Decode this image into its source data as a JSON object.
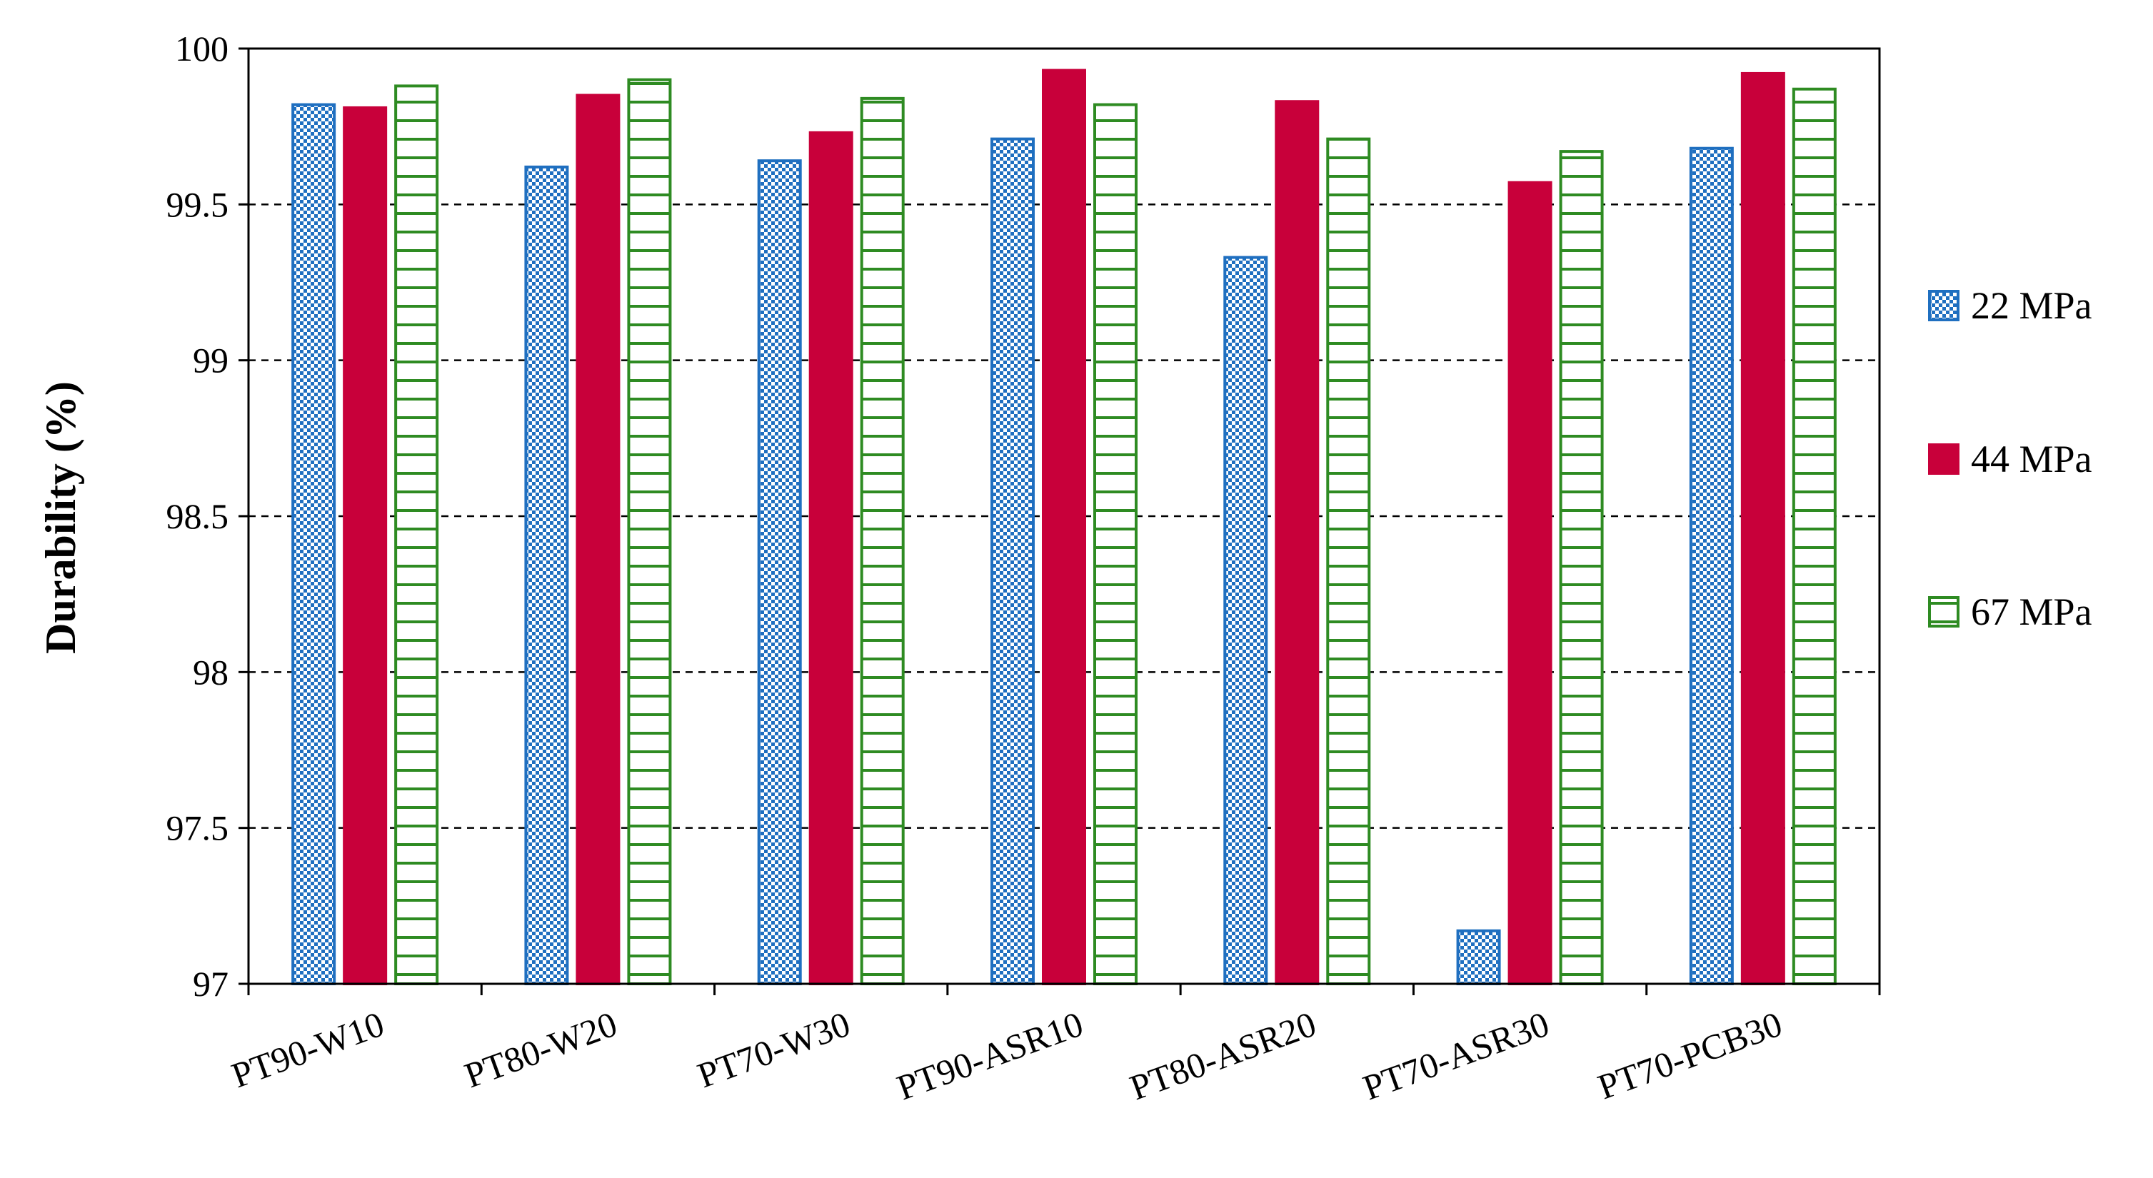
{
  "chart_data": {
    "type": "bar",
    "title": "",
    "xlabel": "",
    "ylabel": "Durability (%)",
    "ylim": [
      97,
      100
    ],
    "yticks": [
      "97",
      "97.5",
      "98",
      "98.5",
      "99",
      "99.5",
      "100"
    ],
    "grid": "horizontal-dashed",
    "legend_position": "right",
    "categories": [
      "PT90-W10",
      "PT80-W20",
      "PT70-W30",
      "PT90-ASR10",
      "PT80-ASR20",
      "PT70-ASR30",
      "PT70-PCB30"
    ],
    "series": [
      {
        "name": "22 MPa",
        "color": "#1f6fc0",
        "pattern": "checker",
        "values": [
          99.82,
          99.62,
          99.64,
          99.71,
          99.33,
          97.17,
          99.68
        ]
      },
      {
        "name": "44 MPa",
        "color": "#c8003a",
        "pattern": "solid",
        "values": [
          99.81,
          99.85,
          99.73,
          99.93,
          99.83,
          99.57,
          99.92
        ]
      },
      {
        "name": "67 MPa",
        "color": "#2e8b22",
        "pattern": "horizontal-lines",
        "values": [
          99.88,
          99.9,
          99.84,
          99.82,
          99.71,
          99.67,
          99.87
        ]
      }
    ]
  }
}
